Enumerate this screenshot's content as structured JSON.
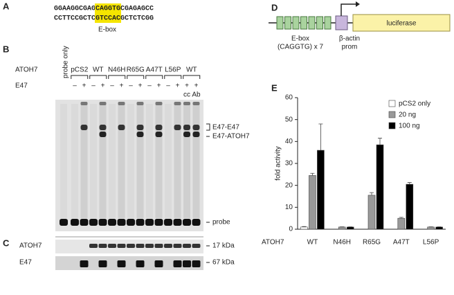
{
  "panel_labels": [
    "A",
    "B",
    "C",
    "D",
    "E"
  ],
  "sequence": {
    "top": [
      "GGAAGGCGAG",
      "CAGGTG",
      "CGAGAG",
      "CC"
    ],
    "bottom": [
      "CC",
      "TTCCGCTC",
      "GTCCAC",
      "GCTCTCGG"
    ],
    "label": "E-box"
  },
  "gel": {
    "atoh7_label": "ATOH7",
    "probe_only": "probe only",
    "groups": [
      "pCS2",
      "WT",
      "N46H",
      "R65G",
      "A47T",
      "L56P",
      "WT"
    ],
    "e47_label": "E47",
    "signs": [
      "–",
      "+",
      "–",
      "+",
      "–",
      "+",
      "–",
      "+",
      "–",
      "+",
      "–",
      "+",
      "+",
      "+"
    ],
    "extra": [
      "cc",
      "Ab"
    ],
    "band_labels": [
      "E47-E47",
      "E47-ATOH7",
      "probe"
    ]
  },
  "western": {
    "rows": [
      "ATOH7",
      "E47"
    ],
    "sizes": [
      "17 kDa",
      "67 kDa"
    ]
  },
  "construct": {
    "ebox": [
      "E-box",
      "(CAGGTG) x 7"
    ],
    "promoter": [
      "β-actin",
      "prom"
    ],
    "reporter": "luciferase"
  },
  "chart_data": {
    "type": "bar",
    "y_label": "fold activity",
    "x_label": "ATOH7",
    "categories": [
      "WT",
      "N46H",
      "R65G",
      "A47T",
      "L56P"
    ],
    "series": [
      {
        "name": "pCS2 only",
        "color": "#ffffff",
        "values": [
          1,
          null,
          null,
          null,
          null
        ],
        "errors": [
          0.2,
          null,
          null,
          null,
          null
        ]
      },
      {
        "name": "20 ng",
        "color": "#999999",
        "values": [
          24.5,
          1,
          15.5,
          5,
          1
        ],
        "errors": [
          1,
          0.1,
          1.2,
          0.4,
          0.1
        ]
      },
      {
        "name": "100 ng",
        "color": "#000000",
        "values": [
          36,
          1,
          38.5,
          20.5,
          1
        ],
        "errors": [
          12,
          0.1,
          3,
          0.8,
          0.1
        ]
      }
    ],
    "ylim": [
      0,
      60
    ],
    "yticks": [
      0,
      10,
      20,
      30,
      40,
      50,
      60
    ],
    "legend": "upper right",
    "grid": false
  }
}
